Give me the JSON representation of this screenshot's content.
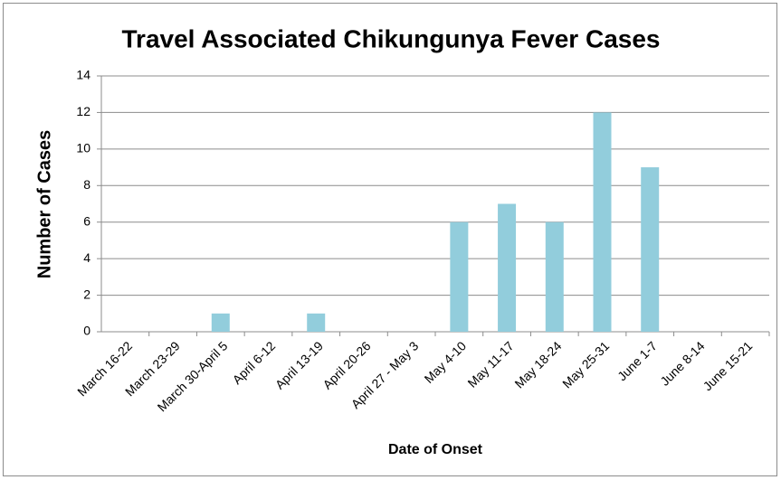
{
  "chart_data": {
    "type": "bar",
    "title": "Travel Associated Chikungunya Fever Cases",
    "x_label": "Date of Onset",
    "y_label": "Number of Cases",
    "categories": [
      "March 16-22",
      "March 23-29",
      "March 30-April 5",
      "April 6-12",
      "April 13-19",
      "April 20-26",
      "April 27 - May 3",
      "May 4-10",
      "May 11-17",
      "May 18-24",
      "May 25-31",
      "June 1-7",
      "June 8-14",
      "June 15-21"
    ],
    "values": [
      0,
      0,
      1,
      0,
      1,
      0,
      0,
      6,
      7,
      6,
      12,
      9,
      0,
      0
    ],
    "color": "#92cddc",
    "ylim": [
      0,
      14
    ],
    "yticks": [
      0,
      2,
      4,
      6,
      8,
      10,
      12,
      14
    ],
    "grid": true
  }
}
